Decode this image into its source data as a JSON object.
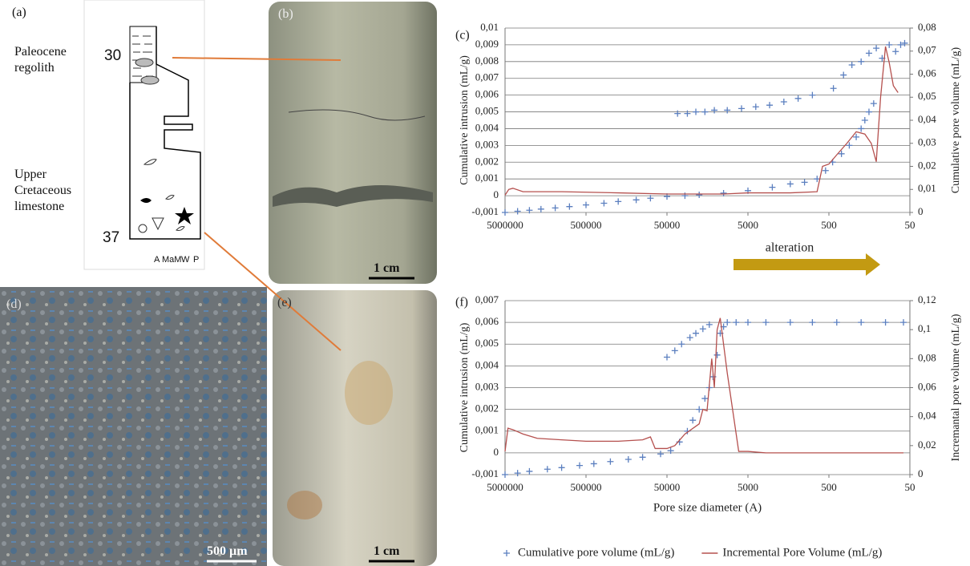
{
  "panels": {
    "a": {
      "label": "(a)",
      "units": [
        "Paleocene regolith",
        "Upper Cretaceous limestone"
      ],
      "depths": [
        "30",
        "37"
      ],
      "texture_classes": [
        "A",
        "MaM",
        "W",
        "P"
      ]
    },
    "b": {
      "label": "(b)",
      "scale": "1 cm"
    },
    "d": {
      "label": "(d)",
      "scale": "500 µm"
    },
    "e": {
      "label": "(e)",
      "scale": "1 cm"
    }
  },
  "chart_data": [
    {
      "type": "combo",
      "title": "(c)",
      "annotation": "alteration",
      "ylabel": "Cumulative intrusion (mL/g)",
      "y2label": "Cumulative pore volume (mL/g)",
      "xscale": "log",
      "xlim": [
        5000000,
        50
      ],
      "xticks": [
        5000000,
        500000,
        50000,
        5000,
        500,
        50
      ],
      "ylim": [
        -0.001,
        0.01
      ],
      "yticks": [
        {
          "value": -0.001,
          "label": "-0,001"
        },
        0,
        {
          "value": 0.001,
          "label": "0,001"
        },
        {
          "value": 0.002,
          "label": "0,002"
        },
        {
          "value": 0.003,
          "label": "0,003"
        },
        {
          "value": 0.004,
          "label": "0,004"
        },
        {
          "value": 0.005,
          "label": "0,005"
        },
        {
          "value": 0.006,
          "label": "0,006"
        },
        {
          "value": 0.007,
          "label": "0,007"
        },
        {
          "value": 0.008,
          "label": "0,008"
        },
        {
          "value": 0.009,
          "label": "0,009"
        },
        {
          "value": 0.01,
          "label": "0,01"
        }
      ],
      "y2lim": [
        0,
        0.08
      ],
      "y2ticks": [
        0,
        {
          "value": 0.01,
          "label": "0,01"
        },
        {
          "value": 0.02,
          "label": "0,02"
        },
        {
          "value": 0.03,
          "label": "0,03"
        },
        {
          "value": 0.04,
          "label": "0,04"
        },
        {
          "value": 0.05,
          "label": "0,05"
        },
        {
          "value": 0.06,
          "label": "0,06"
        },
        {
          "value": 0.07,
          "label": "0,07"
        },
        {
          "value": 0.08,
          "label": "0,08"
        }
      ],
      "grid": true,
      "series": [
        {
          "mark": "cross",
          "color": "#5b7fbf",
          "x": [
            5000000,
            3500000,
            2500000,
            1800000,
            1200000,
            800000,
            500000,
            300000,
            200000,
            120000,
            80000,
            50000,
            30000,
            20000,
            10000,
            5000,
            2500,
            1500,
            1000,
            700,
            550,
            450,
            350,
            280,
            230,
            200,
            180,
            160,
            140,
            37000,
            28000,
            22000,
            17000,
            13000,
            9000,
            6000,
            4000,
            2700,
            1800,
            1200,
            800,
            440,
            330,
            260,
            200,
            160,
            130,
            110,
            90,
            75,
            65,
            58
          ],
          "values": [
            -0.001,
            -0.00093,
            -0.00087,
            -0.0008,
            -0.00073,
            -0.00065,
            -0.00055,
            -0.00045,
            -0.00035,
            -0.00025,
            -0.00015,
            -5e-05,
            0,
            5e-05,
            0.00015,
            0.0003,
            0.0005,
            0.0007,
            0.0008,
            0.001,
            0.0015,
            0.002,
            0.0025,
            0.003,
            0.0035,
            0.004,
            0.0045,
            0.005,
            0.0055,
            0.0049,
            0.0049,
            0.005,
            0.005,
            0.0051,
            0.0051,
            0.0052,
            0.0053,
            0.0054,
            0.0056,
            0.0058,
            0.006,
            0.0064,
            0.0072,
            0.0078,
            0.008,
            0.0085,
            0.0088,
            0.0082,
            0.009,
            0.0086,
            0.009,
            0.0091
          ]
        },
        {
          "mark": "line",
          "axis": "y2",
          "color": "#b5504e",
          "x": [
            5000000,
            4500000,
            4000000,
            3000000,
            1000000,
            200000,
            50000,
            10000,
            5000,
            1500,
            700,
            600,
            500,
            400,
            300,
            230,
            180,
            150,
            130,
            115,
            100,
            90,
            80,
            70
          ],
          "values": [
            0.0075,
            0.01,
            0.0105,
            0.009,
            0.009,
            0.0085,
            0.008,
            0.008,
            0.0085,
            0.0085,
            0.009,
            0.02,
            0.021,
            0.025,
            0.03,
            0.035,
            0.034,
            0.03,
            0.022,
            0.05,
            0.072,
            0.065,
            0.055,
            0.052
          ]
        }
      ]
    },
    {
      "type": "combo",
      "title": "(f)",
      "xlabel": "Pore size diameter (A)",
      "ylabel": "Cumulative intrusion (mL/g)",
      "y2label": "Incremantal pore volume (mL/g)",
      "xscale": "log",
      "xlim": [
        5000000,
        50
      ],
      "xticks": [
        5000000,
        500000,
        50000,
        5000,
        500,
        50
      ],
      "ylim": [
        -0.001,
        0.007
      ],
      "yticks": [
        {
          "value": -0.001,
          "label": "-0,001"
        },
        0,
        {
          "value": 0.001,
          "label": "0,001"
        },
        {
          "value": 0.002,
          "label": "0,002"
        },
        {
          "value": 0.003,
          "label": "0,003"
        },
        {
          "value": 0.004,
          "label": "0,004"
        },
        {
          "value": 0.005,
          "label": "0,005"
        },
        {
          "value": 0.006,
          "label": "0,006"
        },
        {
          "value": 0.007,
          "label": "0,007"
        }
      ],
      "y2lim": [
        0,
        0.12
      ],
      "y2ticks": [
        0,
        {
          "value": 0.02,
          "label": "0,02"
        },
        {
          "value": 0.04,
          "label": "0,04"
        },
        {
          "value": 0.06,
          "label": "0,06"
        },
        {
          "value": 0.08,
          "label": "0,08"
        },
        {
          "value": 0.1,
          "label": "0,1"
        },
        {
          "value": 0.12,
          "label": "0,12"
        }
      ],
      "grid": true,
      "legend": "bottom",
      "series": [
        {
          "name": "Cumulative pore volume  (mL/g)",
          "mark": "cross",
          "color": "#5b7fbf",
          "x": [
            5000000,
            3500000,
            2500000,
            1500000,
            1000000,
            600000,
            400000,
            250000,
            150000,
            100000,
            60000,
            45000,
            35000,
            28000,
            24000,
            20000,
            17000,
            15000,
            13500,
            12000,
            11000,
            10000,
            9000,
            7000,
            5000,
            3000,
            1500,
            800,
            400,
            200,
            100,
            60,
            50000,
            40000,
            33000,
            26000,
            22000,
            18000,
            15000
          ],
          "values": [
            -0.001,
            -0.00093,
            -0.00085,
            -0.00075,
            -0.00068,
            -0.00058,
            -0.0005,
            -0.0004,
            -0.0003,
            -0.0002,
            -5e-05,
            0.0001,
            0.0005,
            0.001,
            0.0015,
            0.002,
            0.0025,
            0.003,
            0.0035,
            0.0045,
            0.0055,
            0.0058,
            0.006,
            0.006,
            0.006,
            0.006,
            0.006,
            0.006,
            0.006,
            0.006,
            0.006,
            0.006,
            0.0044,
            0.0047,
            0.005,
            0.0053,
            0.0055,
            0.0057,
            0.0059
          ]
        },
        {
          "name": "Incremental Pore Volume (mL/g)",
          "mark": "line",
          "axis": "y2",
          "color": "#b5504e",
          "x": [
            5000000,
            4600000,
            4000000,
            3000000,
            2000000,
            1000000,
            500000,
            200000,
            100000,
            80000,
            70000,
            50000,
            40000,
            30000,
            20000,
            18000,
            16000,
            14000,
            13000,
            12000,
            11000,
            9000,
            6500,
            5000,
            3000,
            500,
            60
          ],
          "values": [
            0.016,
            0.032,
            0.031,
            0.028,
            0.025,
            0.024,
            0.023,
            0.023,
            0.024,
            0.026,
            0.018,
            0.018,
            0.02,
            0.028,
            0.035,
            0.045,
            0.044,
            0.08,
            0.06,
            0.1,
            0.108,
            0.07,
            0.016,
            0.016,
            0.015,
            0.015,
            0.015
          ]
        }
      ]
    }
  ]
}
